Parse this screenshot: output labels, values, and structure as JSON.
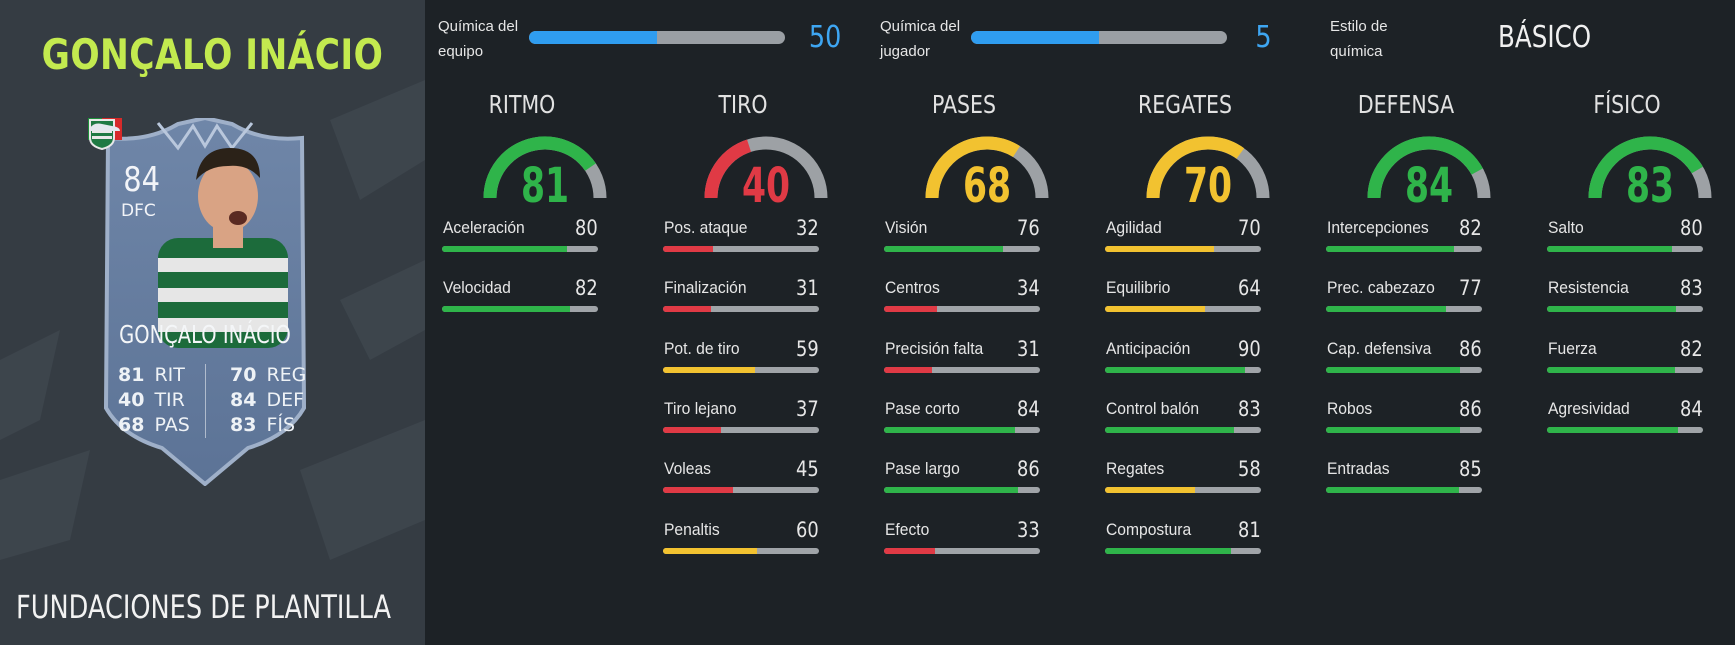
{
  "player": {
    "name": "GONÇALO INÁCIO",
    "squad_title": "FUNDACIONES DE PLANTILLA"
  },
  "card": {
    "rating": "84",
    "position": "DFC",
    "name": "GONÇALO INÁCIO",
    "stats": [
      {
        "value": "81",
        "label": "RIT"
      },
      {
        "value": "70",
        "label": "REG"
      },
      {
        "value": "40",
        "label": "TIR"
      },
      {
        "value": "84",
        "label": "DEF"
      },
      {
        "value": "68",
        "label": "PAS"
      },
      {
        "value": "83",
        "label": "FÍS"
      }
    ],
    "icons": {
      "flag": "portugal-flag-icon",
      "club": "sporting-badge-icon",
      "boot": "boot-icon"
    }
  },
  "chemistry": {
    "team": {
      "label": "Química del equipo",
      "value": "50",
      "fill": 0.5
    },
    "player": {
      "label": "Química del jugador",
      "value": "5",
      "fill": 0.5
    },
    "style": {
      "label": "Estilo de química",
      "value": "BÁSICO"
    }
  },
  "colors": {
    "green": "#2fb44a",
    "yellow": "#f2c230",
    "red": "#e03a45",
    "gray": "#9da1a5",
    "blue": "#2f9df0",
    "name_green": "#c3ea4f"
  },
  "categories": [
    {
      "title": "RITMO",
      "value": "81",
      "color": "green",
      "attributes": [
        {
          "name": "Aceleración",
          "value": "80",
          "color": "green"
        },
        {
          "name": "Velocidad",
          "value": "82",
          "color": "green"
        }
      ]
    },
    {
      "title": "TIRO",
      "value": "40",
      "color": "red",
      "attributes": [
        {
          "name": "Pos. ataque",
          "value": "32",
          "color": "red"
        },
        {
          "name": "Finalización",
          "value": "31",
          "color": "red"
        },
        {
          "name": "Pot. de tiro",
          "value": "59",
          "color": "yellow"
        },
        {
          "name": "Tiro lejano",
          "value": "37",
          "color": "red"
        },
        {
          "name": "Voleas",
          "value": "45",
          "color": "red"
        },
        {
          "name": "Penaltis",
          "value": "60",
          "color": "yellow"
        }
      ]
    },
    {
      "title": "PASES",
      "value": "68",
      "color": "yellow",
      "attributes": [
        {
          "name": "Visión",
          "value": "76",
          "color": "green"
        },
        {
          "name": "Centros",
          "value": "34",
          "color": "red"
        },
        {
          "name": "Precisión falta",
          "value": "31",
          "color": "red"
        },
        {
          "name": "Pase corto",
          "value": "84",
          "color": "green"
        },
        {
          "name": "Pase largo",
          "value": "86",
          "color": "green"
        },
        {
          "name": "Efecto",
          "value": "33",
          "color": "red"
        }
      ]
    },
    {
      "title": "REGATES",
      "value": "70",
      "color": "yellow",
      "attributes": [
        {
          "name": "Agilidad",
          "value": "70",
          "color": "yellow"
        },
        {
          "name": "Equilibrio",
          "value": "64",
          "color": "yellow"
        },
        {
          "name": "Anticipación",
          "value": "90",
          "color": "green"
        },
        {
          "name": "Control balón",
          "value": "83",
          "color": "green"
        },
        {
          "name": "Regates",
          "value": "58",
          "color": "yellow"
        },
        {
          "name": "Compostura",
          "value": "81",
          "color": "green"
        }
      ]
    },
    {
      "title": "DEFENSA",
      "value": "84",
      "color": "green",
      "attributes": [
        {
          "name": "Intercepciones",
          "value": "82",
          "color": "green"
        },
        {
          "name": "Prec. cabezazo",
          "value": "77",
          "color": "green"
        },
        {
          "name": "Cap. defensiva",
          "value": "86",
          "color": "green"
        },
        {
          "name": "Robos",
          "value": "86",
          "color": "green"
        },
        {
          "name": "Entradas",
          "value": "85",
          "color": "green"
        }
      ]
    },
    {
      "title": "FÍSICO",
      "value": "83",
      "color": "green",
      "attributes": [
        {
          "name": "Salto",
          "value": "80",
          "color": "green"
        },
        {
          "name": "Resistencia",
          "value": "83",
          "color": "green"
        },
        {
          "name": "Fuerza",
          "value": "82",
          "color": "green"
        },
        {
          "name": "Agresividad",
          "value": "84",
          "color": "green"
        }
      ]
    }
  ]
}
